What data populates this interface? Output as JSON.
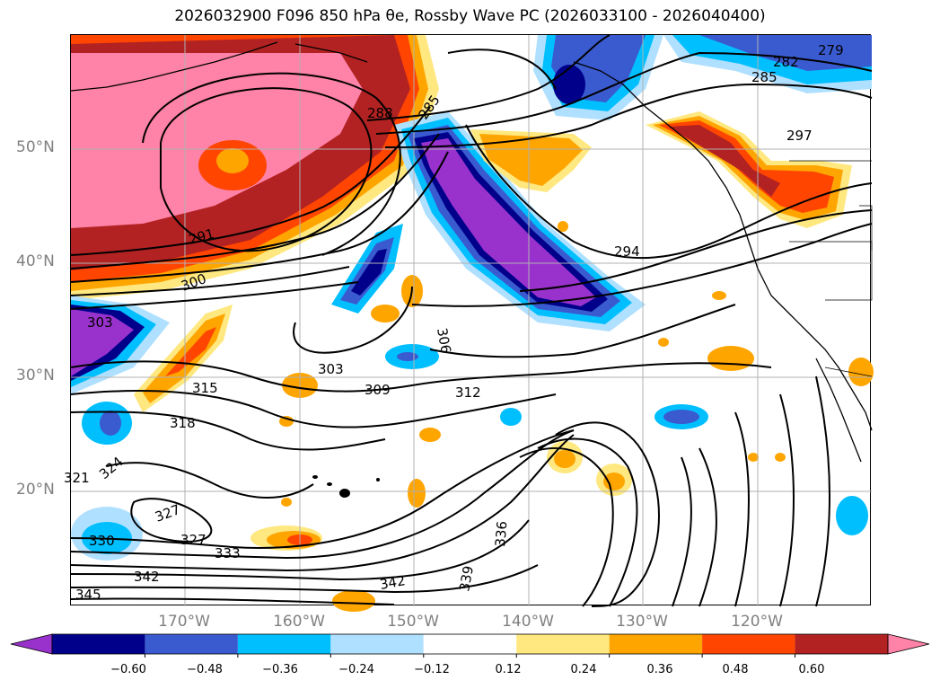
{
  "title": "2026032900 F096 850 hPa θe, Rossby Wave PC (2026033100 - 2026040400)",
  "lat_labels": [
    "50°N",
    "40°N",
    "30°N",
    "20°N"
  ],
  "lon_labels": [
    "170°W",
    "160°W",
    "150°W",
    "140°W",
    "130°W",
    "120°W"
  ],
  "colorbar": {
    "ticks": [
      "−0.60",
      "−0.48",
      "−0.36",
      "−0.24",
      "−0.12",
      "0.12",
      "0.24",
      "0.36",
      "0.48",
      "0.60"
    ],
    "colors": [
      "#9932cc",
      "#00008b",
      "#3a5bd0",
      "#00bfff",
      "#b0e0ff",
      "#ffffff",
      "#ffe880",
      "#ffa500",
      "#ff4500",
      "#b22222",
      "#ff82a8"
    ]
  },
  "contour_labels": [
    "279",
    "282",
    "285",
    "285",
    "288",
    "291",
    "294",
    "297",
    "300",
    "303",
    "303",
    "306",
    "309",
    "312",
    "315",
    "318",
    "321",
    "324",
    "327",
    "327",
    "330",
    "333",
    "336",
    "339",
    "342",
    "342",
    "345"
  ]
}
